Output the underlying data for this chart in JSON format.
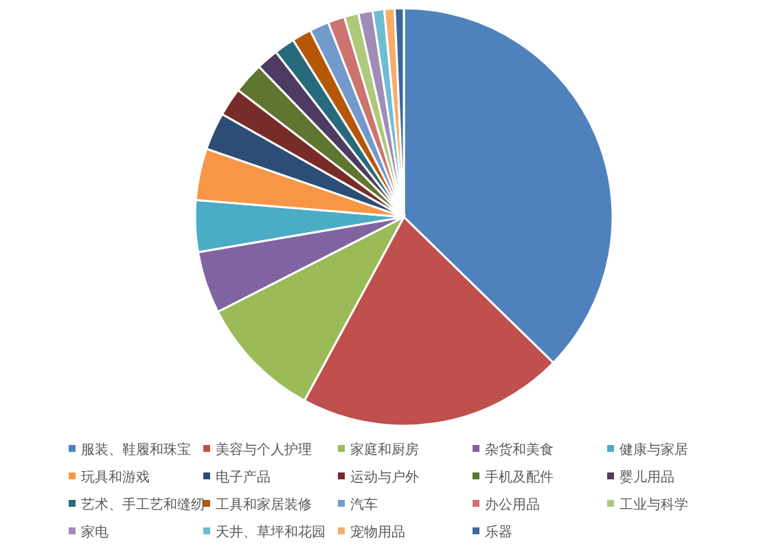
{
  "chart_data": {
    "type": "pie",
    "legend": "bottom",
    "categories": [
      "服装、鞋履和珠宝",
      "美容与个人护理",
      "家庭和厨房",
      "杂货和美食",
      "健康与家居",
      "玩具和游戏",
      "电子产品",
      "运动与户外",
      "手机及配件",
      "婴儿用品",
      "艺术、手工艺和缝纫",
      "工具和家居装修",
      "汽车",
      "办公用品",
      "工业与科学",
      "家电",
      "天井、草坪和花园",
      "宠物用品",
      "乐器"
    ],
    "values": [
      37.3,
      20.6,
      9.6,
      4.8,
      4,
      4,
      2.9,
      2.2,
      2.4,
      1.7,
      1.6,
      1.5,
      1.5,
      1.3,
      1.1,
      1.1,
      0.9,
      0.8,
      0.7
    ],
    "colors": [
      "#4f81bd",
      "#c0504d",
      "#9bbb59",
      "#8064a2",
      "#4bacc6",
      "#f79646",
      "#2c4d75",
      "#772c2a",
      "#5f7530",
      "#4d3b62",
      "#276a7c",
      "#b65708",
      "#729aca",
      "#cd7371",
      "#afc97a",
      "#a18cb7",
      "#6fbdd1",
      "#f9ab6b",
      "#3a679c"
    ]
  }
}
